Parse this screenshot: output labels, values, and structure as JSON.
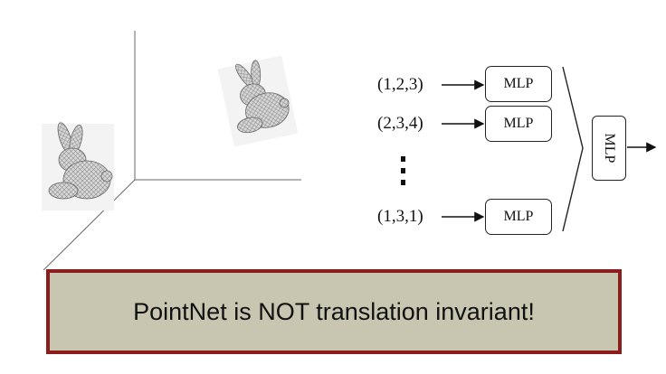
{
  "inputs": [
    {
      "label": "(1,2,3)",
      "mlp": "MLP"
    },
    {
      "label": "(2,3,4)",
      "mlp": "MLP"
    },
    {
      "label": "(1,3,1)",
      "mlp": "MLP"
    }
  ],
  "aggregate_mlp": "MLP",
  "callout_text": "PointNet is NOT translation invariant!",
  "colors": {
    "callout_fill": "#c8c5b0",
    "callout_border": "#8b1d1d",
    "line": "#222222"
  },
  "icons": [
    "bunny-pointcloud-icon",
    "bunny-pointcloud-translated-icon",
    "vertical-ellipsis-icon"
  ]
}
